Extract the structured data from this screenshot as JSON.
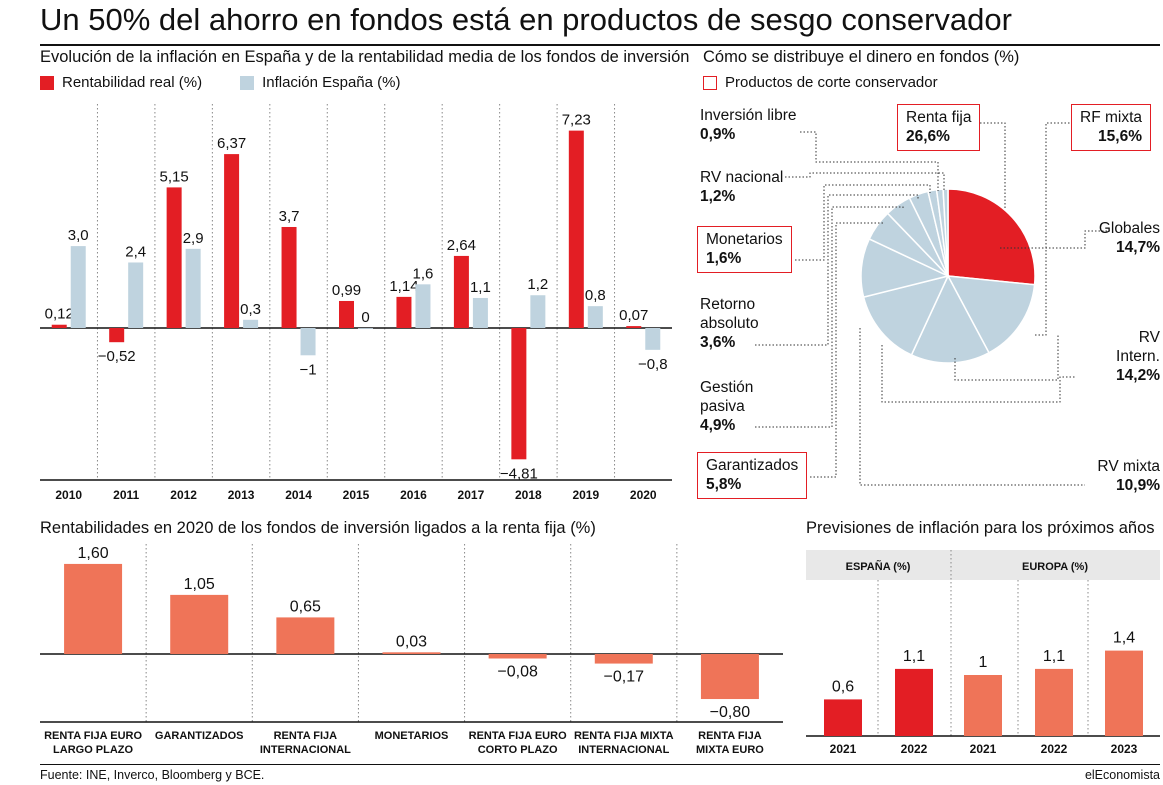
{
  "header": {
    "title": "Un 50% del ahorro en fondos está en productos de sesgo conservador"
  },
  "chart_data": [
    {
      "type": "bar",
      "title": "Evolución de la inflación en España y de la rentabilidad media de los fondos de inversión",
      "categories": [
        "2010",
        "2011",
        "2012",
        "2013",
        "2014",
        "2015",
        "2016",
        "2017",
        "2018",
        "2019",
        "2020"
      ],
      "series": [
        {
          "name": "Rentabilidad real (%)",
          "color": "#e31e24",
          "values": [
            0.12,
            -0.52,
            5.15,
            6.37,
            3.7,
            0.99,
            1.14,
            2.64,
            -4.81,
            7.23,
            0.07
          ],
          "labels": [
            "0,12",
            "−0,52",
            "5,15",
            "6,37",
            "3,7",
            "0,99",
            "1,14",
            "2,64",
            "−4,81",
            "7,23",
            "0,07"
          ]
        },
        {
          "name": "Inflación España (%)",
          "color": "#bfd3df",
          "values": [
            3.0,
            2.4,
            2.9,
            0.3,
            -1,
            0,
            1.6,
            1.1,
            1.2,
            0.8,
            -0.8
          ],
          "labels": [
            "3,0",
            "2,4",
            "2,9",
            "0,3",
            "−1",
            "0",
            "1,6",
            "1,1",
            "1,2",
            "0,8",
            "−0,8"
          ]
        }
      ],
      "legend": "top-left",
      "grid": "vertical dotted"
    },
    {
      "type": "pie",
      "title": "Cómo se distribuye el dinero en fondos (%)",
      "legend_entries": [
        "Productos de corte conservador"
      ],
      "slices": [
        {
          "name": "Renta fija",
          "value": 26.6,
          "label": "26,6%",
          "conservative": true
        },
        {
          "name": "RF mixta",
          "value": 15.6,
          "label": "15,6%",
          "conservative": true
        },
        {
          "name": "Globales",
          "value": 14.7,
          "label": "14,7%",
          "conservative": false
        },
        {
          "name": "RV Intern.",
          "value": 14.2,
          "label": "14,2%",
          "conservative": false
        },
        {
          "name": "RV mixta",
          "value": 10.9,
          "label": "10,9%",
          "conservative": false
        },
        {
          "name": "Garantizados",
          "value": 5.8,
          "label": "5,8%",
          "conservative": true
        },
        {
          "name": "Gestión pasiva",
          "value": 4.9,
          "label": "4,9%",
          "conservative": false
        },
        {
          "name": "Retorno absoluto",
          "value": 3.6,
          "label": "3,6%",
          "conservative": false
        },
        {
          "name": "Monetarios",
          "value": 1.6,
          "label": "1,6%",
          "conservative": true
        },
        {
          "name": "RV nacional",
          "value": 1.2,
          "label": "1,2%",
          "conservative": false
        },
        {
          "name": "Inversión libre",
          "value": 0.9,
          "label": "0,9%",
          "conservative": false
        }
      ],
      "colors": {
        "highlight": "#e31e24",
        "other": "#bfd3df"
      }
    },
    {
      "type": "bar",
      "title": "Rentabilidades en 2020 de los fondos de inversión ligados a la renta fija (%)",
      "categories": [
        "RENTA FIJA EURO LARGO PLAZO",
        "GARANTIZADOS",
        "RENTA FIJA INTERNACIONAL",
        "MONETARIOS",
        "RENTA FIJA EURO CORTO PLAZO",
        "RENTA FIJA MIXTA INTERNACIONAL",
        "RENTA FIJA MIXTA EURO"
      ],
      "category_lines": [
        [
          "RENTA FIJA EURO",
          "LARGO PLAZO"
        ],
        [
          "GARANTIZADOS"
        ],
        [
          "RENTA FIJA",
          "INTERNACIONAL"
        ],
        [
          "MONETARIOS"
        ],
        [
          "RENTA FIJA EURO",
          "CORTO PLAZO"
        ],
        [
          "RENTA FIJA MIXTA",
          "INTERNACIONAL"
        ],
        [
          "RENTA FIJA",
          "MIXTA EURO"
        ]
      ],
      "values": [
        1.6,
        1.05,
        0.65,
        0.03,
        -0.08,
        -0.17,
        -0.8
      ],
      "labels": [
        "1,60",
        "1,05",
        "0,65",
        "0,03",
        "−0,08",
        "−0,17",
        "−0,80"
      ],
      "color": "#ef7458"
    },
    {
      "type": "bar",
      "title": "Previsiones de inflación para los próximos años",
      "groups": [
        {
          "name": "ESPAÑA (%)",
          "categories": [
            "2021",
            "2022"
          ],
          "values": [
            0.6,
            1.1
          ],
          "labels": [
            "0,6",
            "1,1"
          ],
          "color": "#e31e24"
        },
        {
          "name": "EUROPA (%)",
          "categories": [
            "2021",
            "2022",
            "2023"
          ],
          "values": [
            1,
            1.1,
            1.4
          ],
          "labels": [
            "1",
            "1,1",
            "1,4"
          ],
          "color": "#ef7458"
        }
      ]
    }
  ],
  "footer": {
    "source": "Fuente: INE, Inverco, Bloomberg y BCE.",
    "brand": "elEconomista"
  }
}
